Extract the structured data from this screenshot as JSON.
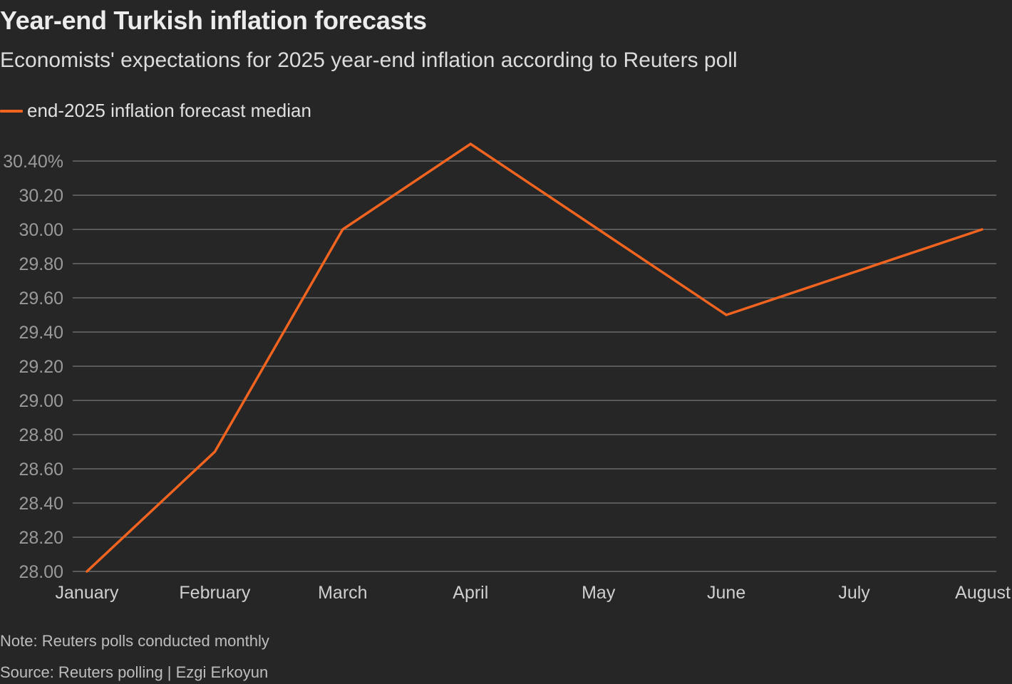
{
  "title": "Year-end Turkish inflation forecasts",
  "subtitle": "Economists' expectations for 2025 year-end inflation according to Reuters poll",
  "note": "Note: Reuters polls conducted monthly",
  "source": "Source: Reuters polling | Ezgi Erkoyun",
  "colors": {
    "background": "#262626",
    "series": "#f06420",
    "grid": "#6b6b6b",
    "tick": "#9a9a9a",
    "category": "#cfcfcf"
  },
  "chart_data": {
    "type": "line",
    "title": "Year-end Turkish inflation forecasts",
    "subtitle": "Economists' expectations for 2025 year-end inflation according to Reuters poll",
    "xlabel": "",
    "ylabel": "",
    "categories": [
      "January",
      "February",
      "March",
      "April",
      "May",
      "June",
      "July",
      "August"
    ],
    "series": [
      {
        "name": "end-2025 inflation forecast median",
        "values": [
          28.0,
          28.7,
          30.0,
          30.5,
          30.0,
          29.5,
          29.75,
          30.0
        ]
      }
    ],
    "ylim": [
      28.0,
      30.4
    ],
    "yticks": [
      {
        "value": 28.0,
        "label": "28.00"
      },
      {
        "value": 28.2,
        "label": "28.20"
      },
      {
        "value": 28.4,
        "label": "28.40"
      },
      {
        "value": 28.6,
        "label": "28.60"
      },
      {
        "value": 28.8,
        "label": "28.80"
      },
      {
        "value": 29.0,
        "label": "29.00"
      },
      {
        "value": 29.2,
        "label": "29.20"
      },
      {
        "value": 29.4,
        "label": "29.40"
      },
      {
        "value": 29.6,
        "label": "29.60"
      },
      {
        "value": 29.8,
        "label": "29.80"
      },
      {
        "value": 30.0,
        "label": "30.00"
      },
      {
        "value": 30.2,
        "label": "30.20"
      },
      {
        "value": 30.4,
        "label": "30.40%"
      }
    ],
    "grid": true,
    "legend": "top-left"
  }
}
